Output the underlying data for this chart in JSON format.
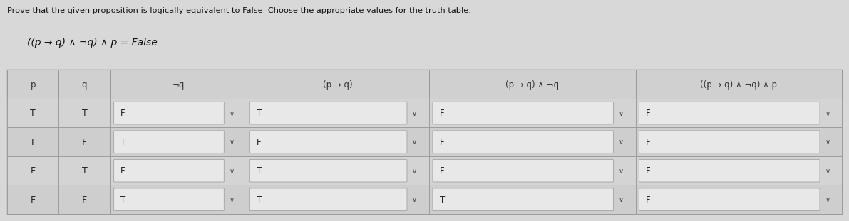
{
  "title": "Prove that the given proposition is logically equivalent to False. Choose the appropriate values for the truth table.",
  "formula": "((p → q) ∧ ¬q) ∧ p ≡ False",
  "col_headers": [
    "p",
    "q",
    "¬q",
    "(p → q)",
    "(p → q) ∧ ¬q",
    "((p → q) ∧ ¬q) ∧ p"
  ],
  "rows": [
    [
      "T",
      "T",
      "F",
      "T",
      "F",
      "F"
    ],
    [
      "T",
      "F",
      "T",
      "F",
      "F",
      "F"
    ],
    [
      "F",
      "T",
      "F",
      "T",
      "F",
      "F"
    ],
    [
      "F",
      "F",
      "T",
      "T",
      "T",
      "F"
    ]
  ],
  "bg_color": "#d8d8d8",
  "table_outer_bg": "#c8c8c8",
  "header_bg": "#d0d0d0",
  "row_bg_even": "#d4d4d4",
  "row_bg_odd": "#cecece",
  "dropdown_bg": "#e8e8e8",
  "dropdown_border": "#aaaaaa",
  "header_text_color": "#333333",
  "cell_text_color": "#222222",
  "plain_cols": [
    0,
    1
  ],
  "dropdown_cols": [
    2,
    3,
    4,
    5
  ],
  "col_props": [
    0.055,
    0.055,
    0.145,
    0.195,
    0.22,
    0.22
  ]
}
